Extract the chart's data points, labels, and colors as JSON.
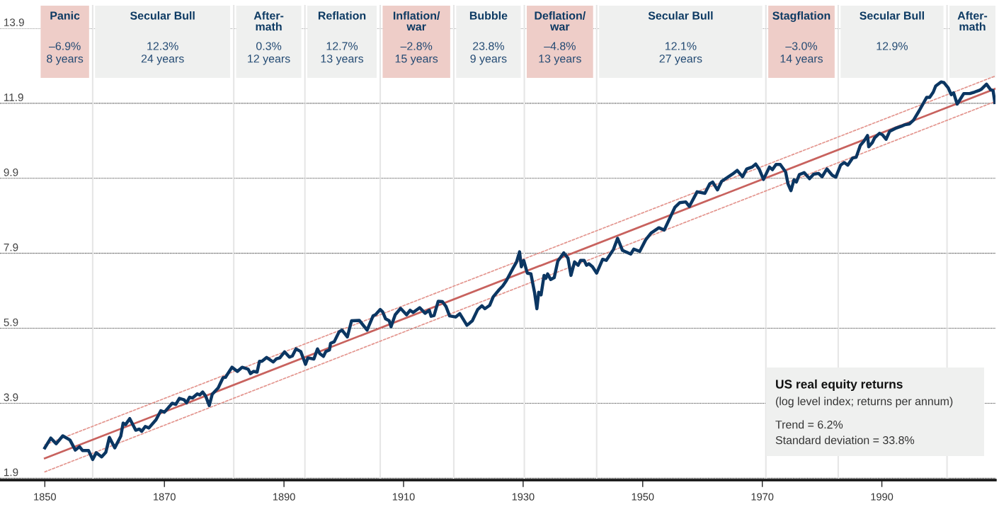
{
  "chart_data": {
    "type": "line",
    "xlim": [
      1842.5,
      2009.0
    ],
    "ylim": [
      1.85,
      13.9
    ],
    "ref_lines": [
      {
        "axis": "x",
        "value": 1858.0,
        "color": "#e6e6e6"
      },
      {
        "axis": "x",
        "value": 1881.6,
        "color": "#e6e6e6"
      },
      {
        "axis": "x",
        "value": 1893.5,
        "color": "#e6e6e6"
      },
      {
        "axis": "x",
        "value": 1906.1,
        "color": "#e6e6e6"
      },
      {
        "axis": "x",
        "value": 1918.4,
        "color": "#e6e6e6"
      },
      {
        "axis": "x",
        "value": 1930.2,
        "color": "#e6e6e6"
      },
      {
        "axis": "x",
        "value": 1942.3,
        "color": "#e6e6e6"
      },
      {
        "axis": "x",
        "value": 1970.6,
        "color": "#e6e6e6"
      },
      {
        "axis": "x",
        "value": 1982.7,
        "color": "#e6e6e6"
      },
      {
        "axis": "x",
        "value": 2000.9,
        "color": "#e6e6e6"
      }
    ],
    "xticks": [
      1850,
      1870,
      1890,
      1910,
      1930,
      1950,
      1970,
      1990
    ],
    "yticks": [
      {
        "value": 1.9,
        "label": "1.9"
      },
      {
        "value": 3.9,
        "label": "3.9"
      },
      {
        "value": 5.9,
        "label": "5.9"
      },
      {
        "value": 7.9,
        "label": "7.9"
      },
      {
        "value": 9.9,
        "label": "9.9"
      },
      {
        "value": 11.9,
        "label": "11.9"
      },
      {
        "value": 13.9,
        "label": "13.9"
      }
    ],
    "grid": "y",
    "bands": [
      {
        "axis": "x",
        "from": 1849.3,
        "to": 1857.4,
        "label": "Panic\n\n–6.9%\n8 years",
        "color": "#eecdc8"
      },
      {
        "axis": "x",
        "from": 1858.4,
        "to": 1881.0,
        "label": "Secular Bull\n\n12.3%\n24 years",
        "color": "#eff0ef"
      },
      {
        "axis": "x",
        "from": 1882.0,
        "to": 1892.9,
        "label": "After-\nmath\n\n0.3%\n12 years",
        "color": "#eff0ef"
      },
      {
        "axis": "x",
        "from": 1893.9,
        "to": 1905.5,
        "label": "Reflation\n\n12.7%\n13 years",
        "color": "#eff0ef"
      },
      {
        "axis": "x",
        "from": 1906.5,
        "to": 1917.8,
        "label": "Inflation/\nwar\n\n–2.8%\n15 years",
        "color": "#eecdc8"
      },
      {
        "axis": "x",
        "from": 1918.8,
        "to": 1929.6,
        "label": "Bubble\n\n23.8%\n9 years",
        "color": "#eff0ef"
      },
      {
        "axis": "x",
        "from": 1930.6,
        "to": 1941.7,
        "label": "Deflation/\nwar\n\n–4.8%\n13 years",
        "color": "#eecdc8"
      },
      {
        "axis": "x",
        "from": 1942.7,
        "to": 1970.0,
        "label": "Secular Bull\n\n12.1%\n27 years",
        "color": "#eff0ef"
      },
      {
        "axis": "x",
        "from": 1971.0,
        "to": 1982.1,
        "label": "Stagflation\n\n–3.0%\n14 years",
        "color": "#eecdc8"
      },
      {
        "axis": "x",
        "from": 1983.1,
        "to": 2000.3,
        "label": "Secular Bull\n\n12.9%",
        "color": "#eff0ef"
      },
      {
        "axis": "x",
        "from": 2001.3,
        "to": 2009.0,
        "label": "After-\nmath",
        "color": "#eff0ef"
      }
    ],
    "annotations": [
      "US real equity returns",
      "(log level index; returns per annum)",
      "Trend = 6.2%",
      "Standard deviation = 33.8%"
    ],
    "series": [
      {
        "color": "#c8625e",
        "line_style": "solid",
        "x": [
          1850,
          2009
        ],
        "values": [
          2.43,
          12.29
        ]
      },
      {
        "color": "#e3948d",
        "line_style": "dotted",
        "x": [
          1850,
          2009
        ],
        "values": [
          2.79,
          12.63
        ]
      },
      {
        "color": "#e3948d",
        "line_style": "dotted",
        "x": [
          1850,
          2009
        ],
        "values": [
          2.07,
          11.95
        ]
      },
      {
        "color": "#0b3662",
        "line_style": "solid",
        "x": [
          1850.0,
          1851.0,
          1851.9,
          1853.0,
          1854.2,
          1855.1,
          1855.8,
          1856.3,
          1857.3,
          1858.0,
          1858.6,
          1859.0,
          1859.5,
          1860.2,
          1860.8,
          1861.7,
          1862.7,
          1863.1,
          1863.5,
          1864.2,
          1865.2,
          1865.8,
          1866.2,
          1866.8,
          1867.4,
          1868.6,
          1869.4,
          1870.0,
          1871.3,
          1871.9,
          1872.5,
          1873.3,
          1873.7,
          1874.2,
          1874.7,
          1875.5,
          1875.9,
          1876.4,
          1876.9,
          1877.5,
          1878.0,
          1879.0,
          1879.8,
          1880.2,
          1881.3,
          1882.2,
          1883.0,
          1884.0,
          1884.4,
          1884.9,
          1885.5,
          1885.9,
          1886.3,
          1887.1,
          1888.2,
          1888.7,
          1889.3,
          1890.1,
          1890.9,
          1891.4,
          1892.0,
          1892.8,
          1893.6,
          1894.0,
          1895.0,
          1895.6,
          1896.0,
          1896.6,
          1897.0,
          1897.6,
          1897.8,
          1898.4,
          1899.2,
          1899.7,
          1900.6,
          1901.3,
          1902.6,
          1903.9,
          1904.9,
          1905.3,
          1906.1,
          1906.5,
          1907.0,
          1907.6,
          1907.9,
          1908.6,
          1909.5,
          1910.5,
          1911.1,
          1911.6,
          1912.7,
          1913.6,
          1914.3,
          1914.6,
          1915.1,
          1915.8,
          1916.5,
          1917.1,
          1917.7,
          1918.7,
          1919.4,
          1920.6,
          1921.0,
          1921.5,
          1922.4,
          1923.1,
          1923.6,
          1924.4,
          1925.0,
          1926.0,
          1926.6,
          1927.2,
          1927.8,
          1928.3,
          1928.9,
          1929.4,
          1929.7,
          1930.1,
          1930.7,
          1931.3,
          1931.9,
          1932.3,
          1932.6,
          1933.0,
          1933.5,
          1933.8,
          1934.1,
          1934.6,
          1935.2,
          1935.8,
          1936.8,
          1937.5,
          1938.0,
          1938.6,
          1939.2,
          1939.6,
          1940.2,
          1940.6,
          1941.0,
          1941.6,
          1942.3,
          1943.3,
          1943.9,
          1945.1,
          1945.8,
          1946.6,
          1948.0,
          1948.5,
          1949.5,
          1950.5,
          1951.4,
          1952.7,
          1953.6,
          1955.4,
          1956.2,
          1957.2,
          1957.8,
          1959.1,
          1960.4,
          1961.2,
          1961.7,
          1962.5,
          1963.2,
          1965.0,
          1965.8,
          1966.7,
          1967.4,
          1968.3,
          1968.9,
          1969.5,
          1970.2,
          1971.2,
          1971.7,
          1972.3,
          1973.0,
          1973.9,
          1974.3,
          1974.8,
          1975.3,
          1975.7,
          1976.2,
          1977.0,
          1977.9,
          1978.6,
          1979.4,
          1980.0,
          1980.8,
          1981.7,
          1982.3,
          1983.1,
          1983.7,
          1984.3,
          1985.1,
          1985.7,
          1986.4,
          1987.0,
          1987.6,
          1987.8,
          1988.4,
          1988.8,
          1989.6,
          1990.1,
          1990.7,
          1991.3,
          1992.4,
          1993.3,
          1993.9,
          1994.6,
          1995.3,
          1996.2,
          1997.5,
          1998.0,
          1998.6,
          1999.0,
          1999.9,
          2000.4,
          2001.1,
          2001.6,
          2002.0,
          2002.6,
          2003.7,
          2004.7,
          2005.5,
          2006.2,
          2006.6,
          2007.5,
          2008.2,
          2008.6,
          2008.9
        ],
        "values": [
          2.71,
          2.97,
          2.82,
          3.03,
          2.92,
          2.65,
          2.74,
          2.64,
          2.64,
          2.4,
          2.58,
          2.53,
          2.47,
          2.59,
          2.99,
          2.71,
          3.02,
          3.37,
          3.33,
          3.49,
          3.18,
          3.21,
          3.15,
          3.28,
          3.24,
          3.46,
          3.7,
          3.66,
          3.9,
          3.87,
          4.03,
          3.99,
          3.91,
          4.06,
          4.04,
          4.15,
          4.12,
          4.2,
          4.09,
          3.84,
          4.14,
          4.31,
          4.58,
          4.59,
          4.86,
          4.75,
          4.86,
          4.81,
          4.69,
          4.75,
          4.73,
          5.02,
          5.02,
          5.12,
          5.0,
          5.08,
          5.11,
          5.27,
          5.13,
          5.16,
          5.35,
          5.28,
          4.94,
          5.11,
          5.08,
          5.35,
          5.22,
          5.15,
          5.28,
          5.32,
          5.5,
          5.54,
          5.8,
          5.85,
          5.67,
          6.1,
          6.11,
          5.85,
          6.23,
          6.26,
          6.4,
          6.34,
          6.15,
          6.1,
          5.94,
          6.26,
          6.43,
          6.26,
          6.38,
          6.32,
          6.45,
          6.3,
          6.38,
          6.22,
          6.24,
          6.62,
          6.61,
          6.48,
          6.23,
          6.2,
          6.29,
          5.98,
          6.03,
          6.1,
          6.4,
          6.5,
          6.42,
          6.51,
          6.74,
          6.93,
          7.03,
          7.17,
          7.35,
          7.5,
          7.67,
          7.94,
          7.54,
          7.71,
          7.37,
          7.35,
          6.86,
          6.42,
          6.86,
          6.79,
          7.31,
          7.23,
          7.35,
          7.2,
          7.25,
          7.69,
          7.91,
          7.77,
          7.31,
          7.67,
          7.58,
          7.71,
          7.71,
          7.58,
          7.62,
          7.54,
          7.37,
          7.74,
          7.71,
          8.0,
          8.3,
          7.98,
          7.88,
          8.01,
          7.95,
          8.26,
          8.44,
          8.58,
          8.52,
          9.13,
          9.25,
          9.27,
          9.15,
          9.54,
          9.5,
          9.75,
          9.8,
          9.59,
          9.82,
          10.01,
          10.11,
          9.94,
          10.15,
          10.2,
          10.28,
          10.14,
          9.87,
          10.2,
          10.13,
          10.27,
          10.27,
          10.07,
          9.75,
          9.57,
          9.86,
          9.8,
          10.0,
          10.05,
          9.89,
          10.01,
          10.03,
          9.94,
          10.15,
          9.98,
          9.93,
          10.25,
          10.32,
          10.25,
          10.44,
          10.46,
          10.78,
          10.89,
          11.04,
          10.74,
          10.85,
          10.98,
          11.1,
          11.06,
          10.94,
          11.15,
          11.24,
          11.29,
          11.33,
          11.35,
          11.45,
          11.69,
          12.06,
          12.06,
          12.2,
          12.36,
          12.47,
          12.45,
          12.31,
          12.13,
          12.18,
          11.88,
          12.16,
          12.16,
          12.2,
          12.24,
          12.27,
          12.41,
          12.26,
          12.24,
          11.92
        ]
      }
    ]
  }
}
